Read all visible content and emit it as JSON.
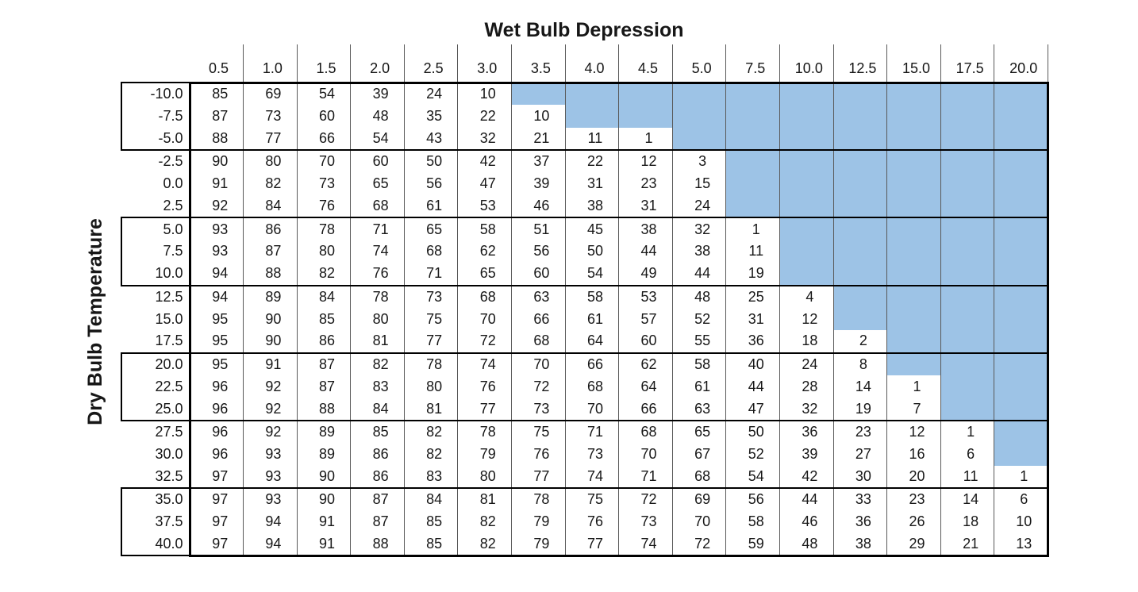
{
  "title": "Wet Bulb Depression",
  "y_axis_label": "Dry Bulb Temperature",
  "colors": {
    "empty_cell_blue": "#9DC3E6",
    "thin_grid": "#595959",
    "heavy_grid": "#000000",
    "background": "#ffffff",
    "text": "#171717"
  },
  "chart_data": {
    "type": "table",
    "title": "Wet Bulb Depression",
    "column_axis_title": "Wet Bulb Depression",
    "row_axis_title": "Dry Bulb Temperature",
    "columns": [
      "0.5",
      "1.0",
      "1.5",
      "2.0",
      "2.5",
      "3.0",
      "3.5",
      "4.0",
      "4.5",
      "5.0",
      "7.5",
      "10.0",
      "12.5",
      "15.0",
      "17.5",
      "20.0"
    ],
    "row_group_size": 3,
    "empty_cell_style": "blue",
    "rows": [
      {
        "label": "-10.0",
        "values": [
          85,
          69,
          54,
          39,
          24,
          10,
          null,
          null,
          null,
          null,
          null,
          null,
          null,
          null,
          null,
          null
        ]
      },
      {
        "label": "-7.5",
        "values": [
          87,
          73,
          60,
          48,
          35,
          22,
          10,
          null,
          null,
          null,
          null,
          null,
          null,
          null,
          null,
          null
        ]
      },
      {
        "label": "-5.0",
        "values": [
          88,
          77,
          66,
          54,
          43,
          32,
          21,
          11,
          1,
          null,
          null,
          null,
          null,
          null,
          null,
          null
        ]
      },
      {
        "label": "-2.5",
        "values": [
          90,
          80,
          70,
          60,
          50,
          42,
          37,
          22,
          12,
          3,
          null,
          null,
          null,
          null,
          null,
          null
        ]
      },
      {
        "label": "0.0",
        "values": [
          91,
          82,
          73,
          65,
          56,
          47,
          39,
          31,
          23,
          15,
          null,
          null,
          null,
          null,
          null,
          null
        ]
      },
      {
        "label": "2.5",
        "values": [
          92,
          84,
          76,
          68,
          61,
          53,
          46,
          38,
          31,
          24,
          null,
          null,
          null,
          null,
          null,
          null
        ]
      },
      {
        "label": "5.0",
        "values": [
          93,
          86,
          78,
          71,
          65,
          58,
          51,
          45,
          38,
          32,
          1,
          null,
          null,
          null,
          null,
          null
        ]
      },
      {
        "label": "7.5",
        "values": [
          93,
          87,
          80,
          74,
          68,
          62,
          56,
          50,
          44,
          38,
          11,
          null,
          null,
          null,
          null,
          null
        ]
      },
      {
        "label": "10.0",
        "values": [
          94,
          88,
          82,
          76,
          71,
          65,
          60,
          54,
          49,
          44,
          19,
          null,
          null,
          null,
          null,
          null
        ]
      },
      {
        "label": "12.5",
        "values": [
          94,
          89,
          84,
          78,
          73,
          68,
          63,
          58,
          53,
          48,
          25,
          4,
          null,
          null,
          null,
          null
        ]
      },
      {
        "label": "15.0",
        "values": [
          95,
          90,
          85,
          80,
          75,
          70,
          66,
          61,
          57,
          52,
          31,
          12,
          null,
          null,
          null,
          null
        ]
      },
      {
        "label": "17.5",
        "values": [
          95,
          90,
          86,
          81,
          77,
          72,
          68,
          64,
          60,
          55,
          36,
          18,
          2,
          null,
          null,
          null
        ]
      },
      {
        "label": "20.0",
        "values": [
          95,
          91,
          87,
          82,
          78,
          74,
          70,
          66,
          62,
          58,
          40,
          24,
          8,
          null,
          null,
          null
        ]
      },
      {
        "label": "22.5",
        "values": [
          96,
          92,
          87,
          83,
          80,
          76,
          72,
          68,
          64,
          61,
          44,
          28,
          14,
          1,
          null,
          null
        ]
      },
      {
        "label": "25.0",
        "values": [
          96,
          92,
          88,
          84,
          81,
          77,
          73,
          70,
          66,
          63,
          47,
          32,
          19,
          7,
          null,
          null
        ]
      },
      {
        "label": "27.5",
        "values": [
          96,
          92,
          89,
          85,
          82,
          78,
          75,
          71,
          68,
          65,
          50,
          36,
          23,
          12,
          1,
          null
        ]
      },
      {
        "label": "30.0",
        "values": [
          96,
          93,
          89,
          86,
          82,
          79,
          76,
          73,
          70,
          67,
          52,
          39,
          27,
          16,
          6,
          null
        ]
      },
      {
        "label": "32.5",
        "values": [
          97,
          93,
          90,
          86,
          83,
          80,
          77,
          74,
          71,
          68,
          54,
          42,
          30,
          20,
          11,
          1
        ]
      },
      {
        "label": "35.0",
        "values": [
          97,
          93,
          90,
          87,
          84,
          81,
          78,
          75,
          72,
          69,
          56,
          44,
          33,
          23,
          14,
          6
        ]
      },
      {
        "label": "37.5",
        "values": [
          97,
          94,
          91,
          87,
          85,
          82,
          79,
          76,
          73,
          70,
          58,
          46,
          36,
          26,
          18,
          10
        ]
      },
      {
        "label": "40.0",
        "values": [
          97,
          94,
          91,
          88,
          85,
          82,
          79,
          77,
          74,
          72,
          59,
          48,
          38,
          29,
          21,
          13
        ]
      }
    ]
  }
}
